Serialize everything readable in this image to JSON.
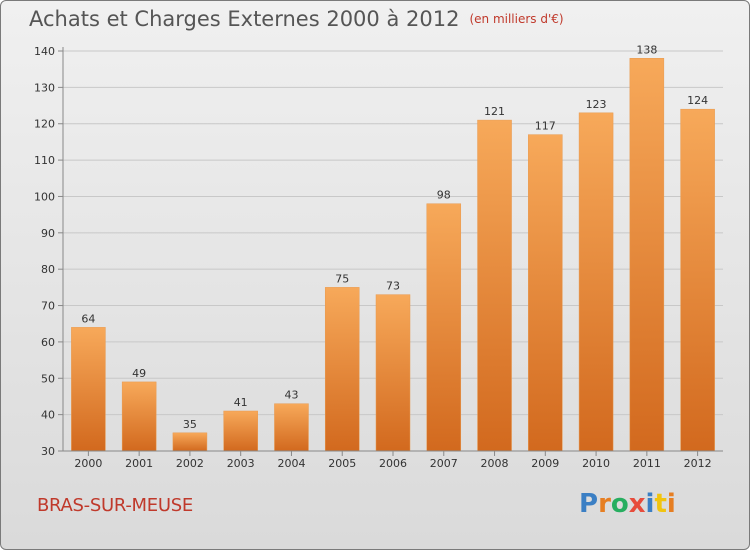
{
  "chart_data": {
    "type": "bar",
    "title": "Achats et Charges Externes 2000 à 2012",
    "subtitle": "(en milliers d'€)",
    "categories": [
      "2000",
      "2001",
      "2002",
      "2003",
      "2004",
      "2005",
      "2006",
      "2007",
      "2008",
      "2009",
      "2010",
      "2011",
      "2012"
    ],
    "values": [
      64,
      49,
      35,
      41,
      43,
      75,
      73,
      98,
      121,
      117,
      123,
      138,
      124
    ],
    "ylim": [
      30,
      140
    ],
    "yticks": [
      30,
      40,
      50,
      60,
      70,
      80,
      90,
      100,
      110,
      120,
      130,
      140
    ],
    "grid": true,
    "bar_color_top": "#f7a95a",
    "bar_color_bottom": "#d2691e"
  },
  "footer": {
    "commune": "BRAS-SUR-MEUSE",
    "logo": {
      "p": "P",
      "r": "r",
      "o": "o",
      "x": "x",
      "i1": "i",
      "t": "t",
      "i2": "i"
    }
  }
}
